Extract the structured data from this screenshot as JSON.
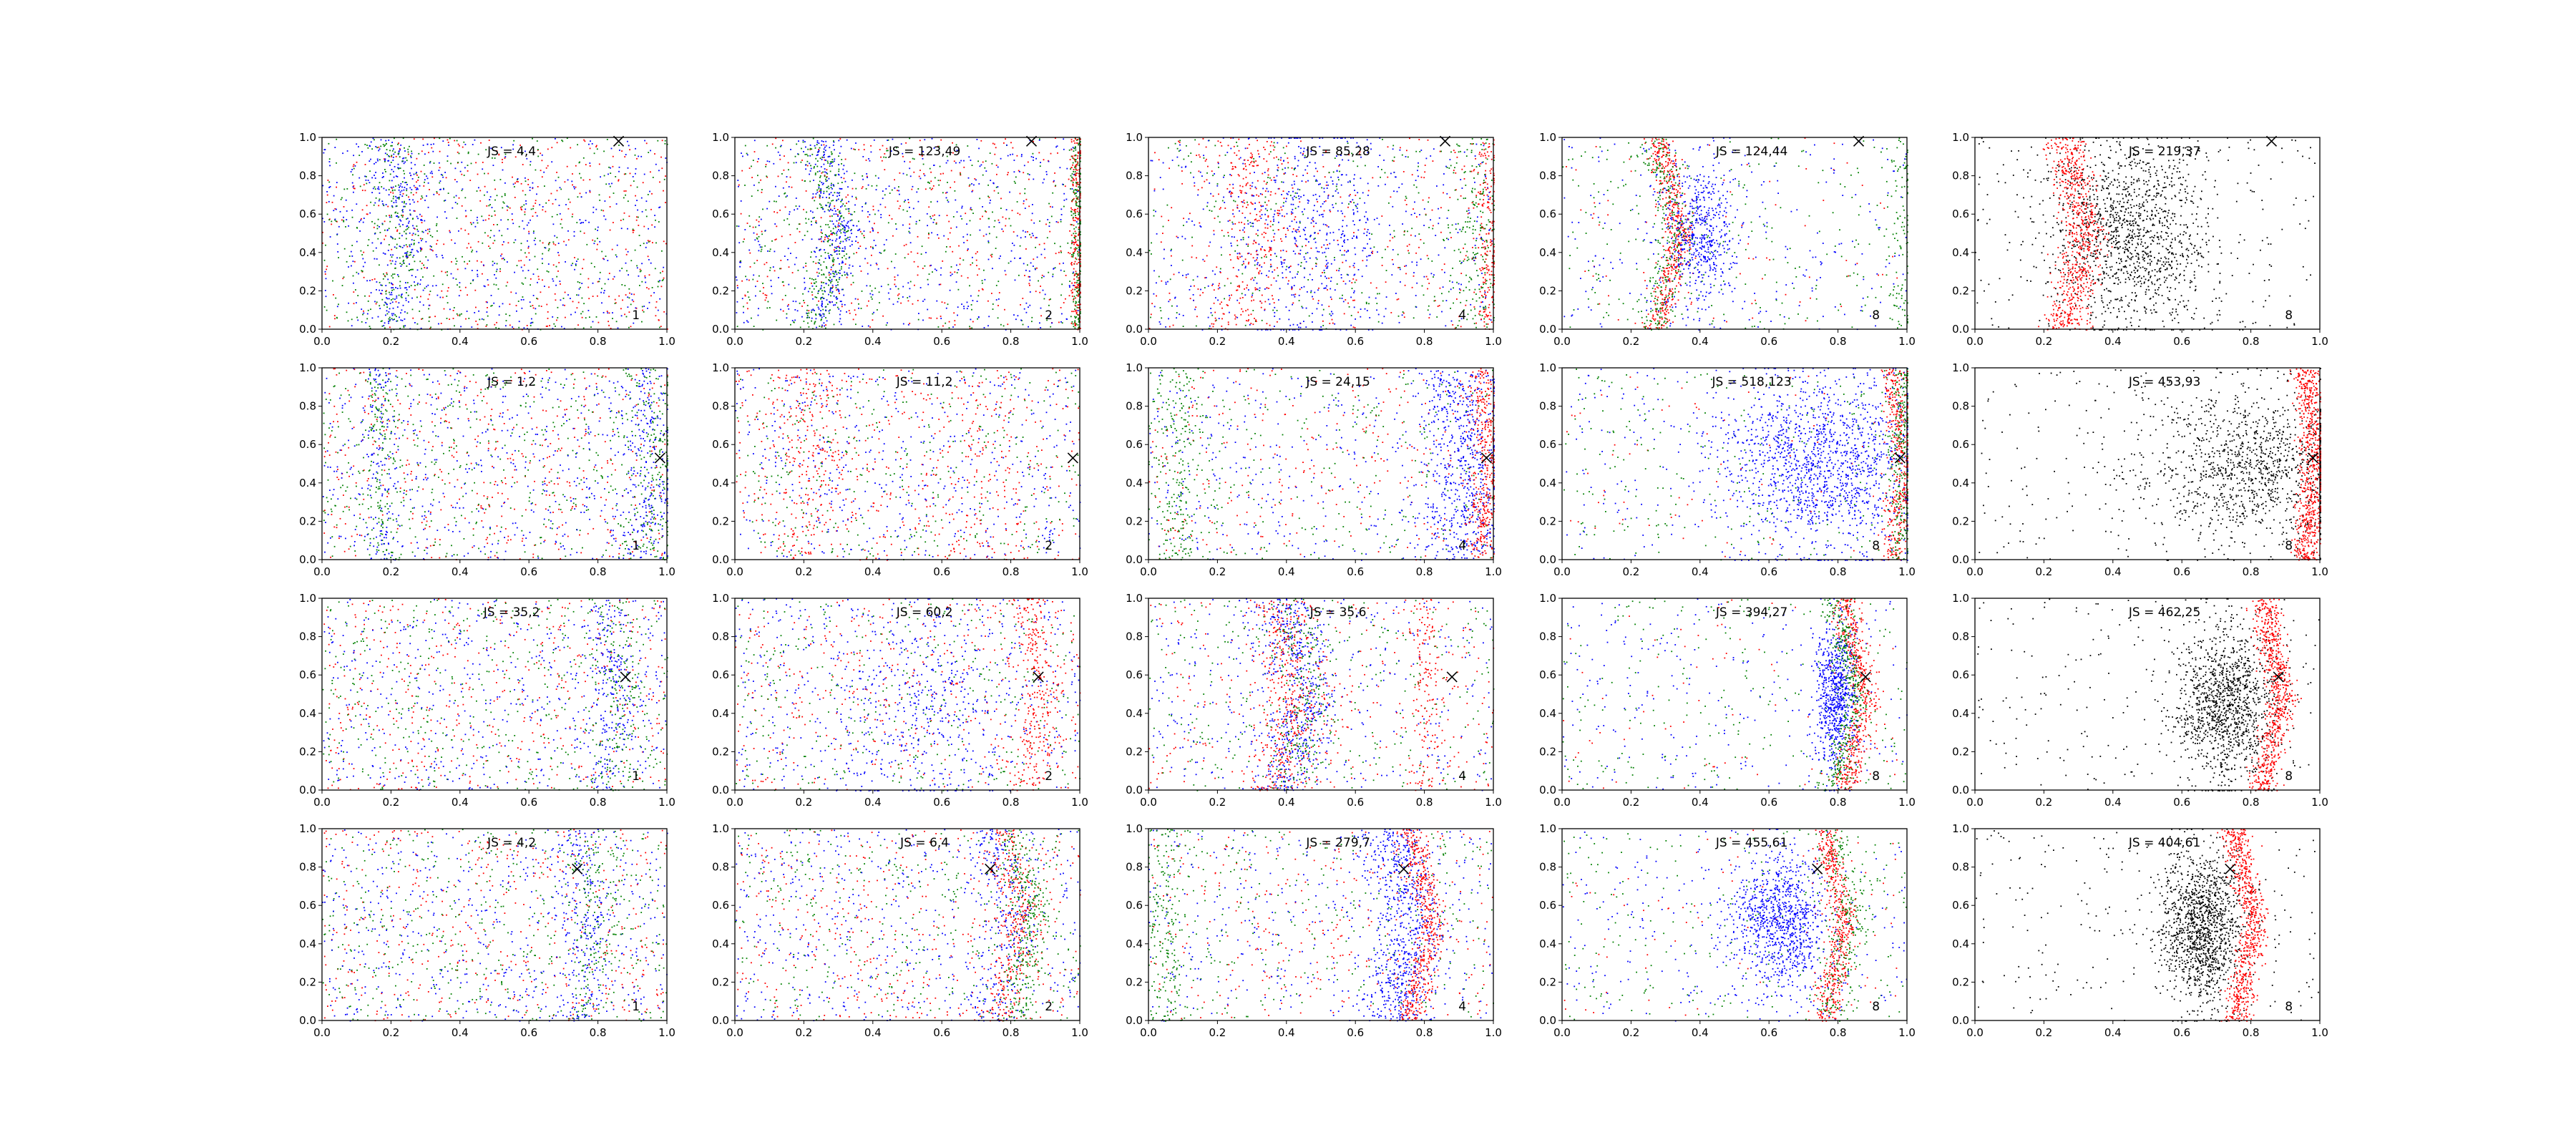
{
  "colors": {
    "red": "#ff0000",
    "green": "#008000",
    "blue": "#0000ff",
    "black": "#000000"
  },
  "chart_data": {
    "type": "scatter",
    "layout": "4 rows x 5 columns grid of scatter subplots",
    "xlim": [
      0,
      1
    ],
    "ylim": [
      0,
      1
    ],
    "x_ticks": [
      "0.0",
      "0.2",
      "0.4",
      "0.6",
      "0.8",
      "1.0"
    ],
    "y_ticks": [
      "0.0",
      "0.2",
      "0.4",
      "0.6",
      "0.8",
      "1.0"
    ],
    "point_colors": [
      "red",
      "green",
      "blue",
      "black"
    ],
    "marker": "x",
    "rows": [
      {
        "marker": {
          "x": 0.86,
          "y": 0.98
        },
        "band_center_x": 0.3,
        "panels": [
          {
            "js": "JS = 4,4",
            "label": "1"
          },
          {
            "js": "JS = 123,49",
            "label": "2"
          },
          {
            "js": "JS = 85,28",
            "label": "4"
          },
          {
            "js": "JS = 124,44",
            "label": "8"
          },
          {
            "js": "JS = 219,37",
            "label": "8"
          }
        ]
      },
      {
        "marker": {
          "x": 0.98,
          "y": 0.53
        },
        "band_center_x": 0.96,
        "panels": [
          {
            "js": "JS = 1,2",
            "label": "1"
          },
          {
            "js": "JS = 11,2",
            "label": "2"
          },
          {
            "js": "JS = 24,15",
            "label": "4"
          },
          {
            "js": "JS = 518,123",
            "label": "8"
          },
          {
            "js": "JS = 453,93",
            "label": "8"
          }
        ]
      },
      {
        "marker": {
          "x": 0.88,
          "y": 0.59
        },
        "band_center_x": 0.85,
        "panels": [
          {
            "js": "JS = 35,2",
            "label": "1"
          },
          {
            "js": "JS = 60,2",
            "label": "2"
          },
          {
            "js": "JS = 35,6",
            "label": "4"
          },
          {
            "js": "JS = 394,27",
            "label": "8"
          },
          {
            "js": "JS = 462,25",
            "label": "8"
          }
        ]
      },
      {
        "marker": {
          "x": 0.74,
          "y": 0.79
        },
        "band_center_x": 0.78,
        "panels": [
          {
            "js": "JS = 4,2",
            "label": "1"
          },
          {
            "js": "JS = 6,4",
            "label": "2"
          },
          {
            "js": "JS = 279,7",
            "label": "4"
          },
          {
            "js": "JS = 455,61",
            "label": "8"
          },
          {
            "js": "JS = 404,61",
            "label": "8"
          }
        ]
      }
    ]
  }
}
